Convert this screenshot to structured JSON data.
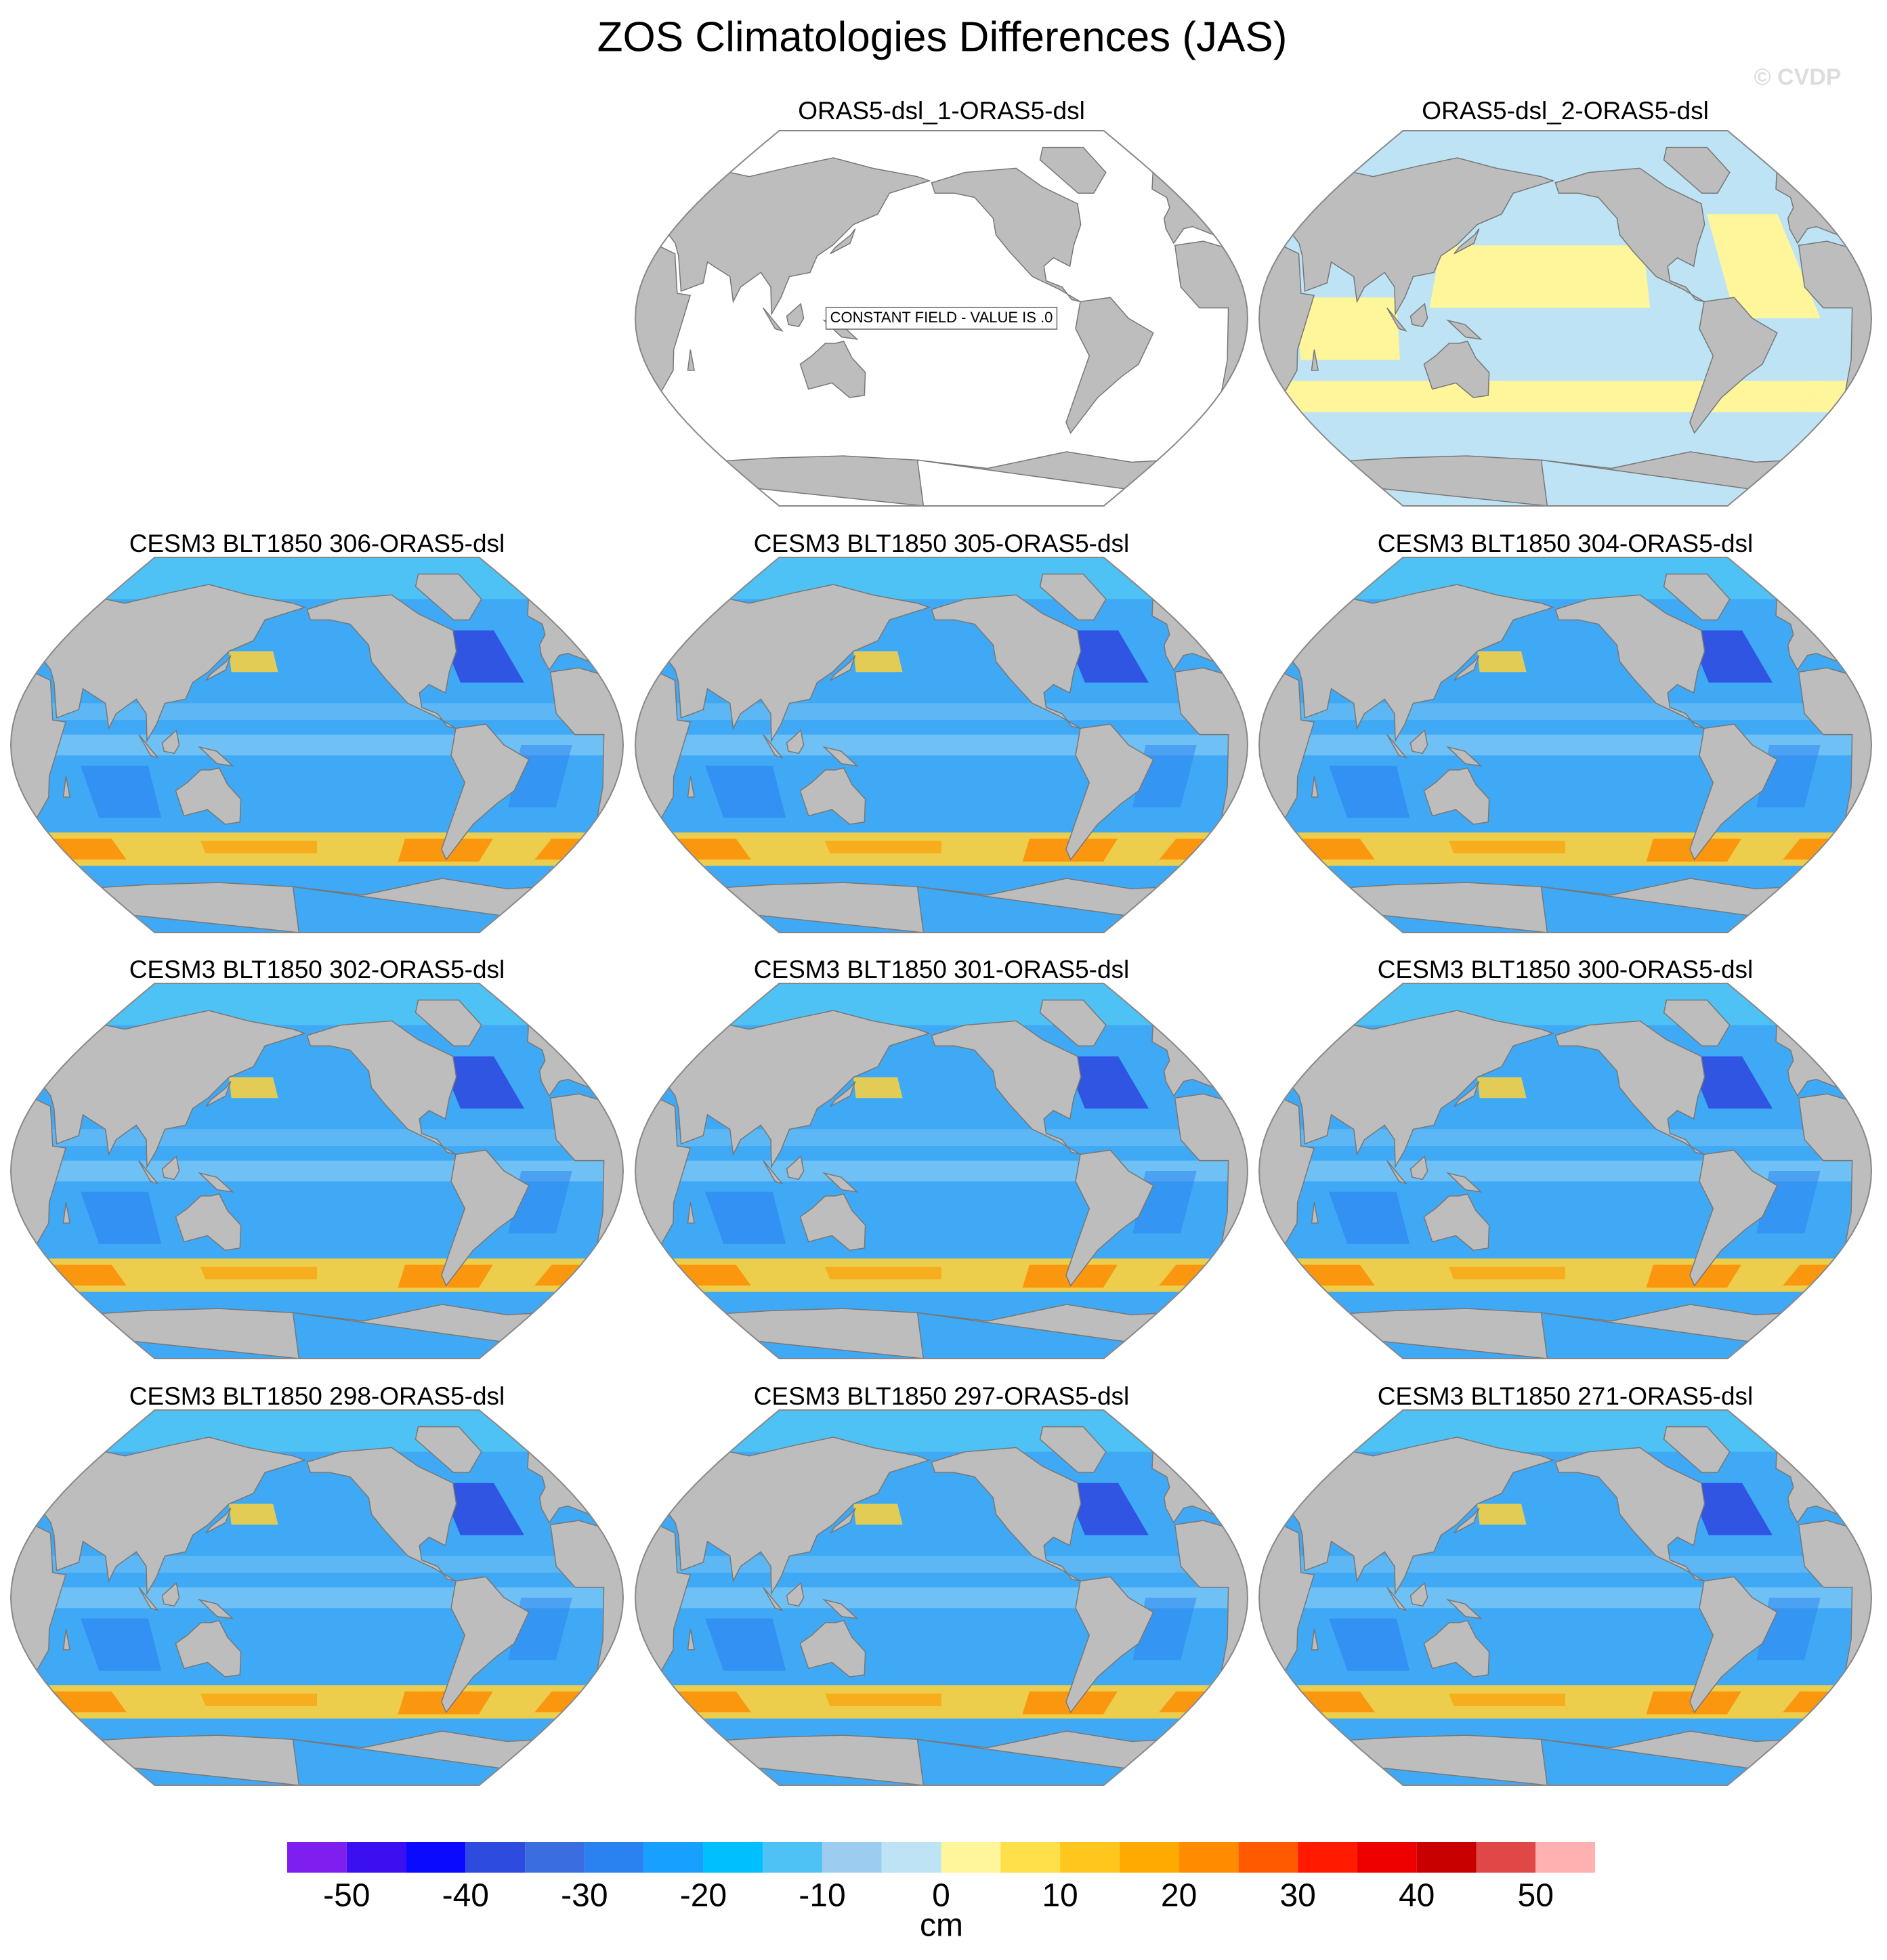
{
  "title": "ZOS Climatologies Differences (JAS)",
  "watermark": "© CVDP",
  "panels": [
    {
      "title": "ORAS5-dsl_1-ORAS5-dsl",
      "annotation": "CONSTANT FIELD - VALUE IS .0"
    },
    {
      "title": "ORAS5-dsl_2-ORAS5-dsl"
    },
    {
      "title": "CESM3 BLT1850 306-ORAS5-dsl"
    },
    {
      "title": "CESM3 BLT1850 305-ORAS5-dsl"
    },
    {
      "title": "CESM3 BLT1850 304-ORAS5-dsl"
    },
    {
      "title": "CESM3 BLT1850 302-ORAS5-dsl"
    },
    {
      "title": "CESM3 BLT1850 301-ORAS5-dsl"
    },
    {
      "title": "CESM3 BLT1850 300-ORAS5-dsl"
    },
    {
      "title": "CESM3 BLT1850 298-ORAS5-dsl"
    },
    {
      "title": "CESM3 BLT1850 297-ORAS5-dsl"
    },
    {
      "title": "CESM3 BLT1850 271-ORAS5-dsl"
    }
  ],
  "colorbar": {
    "lim": [
      -55,
      55
    ],
    "levels": [
      -50,
      -45,
      -40,
      -35,
      -30,
      -25,
      -20,
      -15,
      -10,
      -5,
      0,
      5,
      10,
      15,
      20,
      25,
      30,
      35,
      40,
      45,
      50
    ],
    "colors": [
      "#7f1fef",
      "#3c0ff0",
      "#0a0aff",
      "#2e4be0",
      "#3a6ee0",
      "#2a82f0",
      "#17a0ff",
      "#00bfff",
      "#4fc2f5",
      "#9ccdf0",
      "#bde3f5",
      "#fff59a",
      "#ffe04a",
      "#ffc61e",
      "#ffaa00",
      "#ff8c00",
      "#ff5a00",
      "#ff1a00",
      "#ee0000",
      "#c80000",
      "#e04848",
      "#ffb0b0"
    ],
    "ticks": [
      -50,
      -40,
      -30,
      -20,
      -10,
      0,
      10,
      20,
      30,
      40,
      50
    ],
    "label": "cm"
  }
}
